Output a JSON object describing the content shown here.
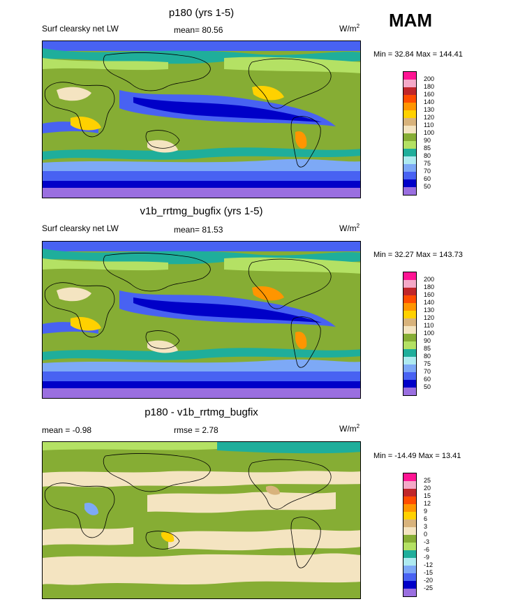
{
  "season": "MAM",
  "colors": {
    "panel1_scale": [
      "#ff1493",
      "#f4a9c8",
      "#c0262a",
      "#ff4d00",
      "#ff9500",
      "#ffd100",
      "#d8b37c",
      "#f4e4c1",
      "#86ad34",
      "#b4e164",
      "#1fae9b",
      "#aeeaf0",
      "#7da9f6",
      "#4862f2",
      "#0000c8",
      "#9a6fe0"
    ],
    "panel3_scale": [
      "#ff1493",
      "#f4a9c8",
      "#c0262a",
      "#ff4d00",
      "#ff9500",
      "#ffd100",
      "#d8b37c",
      "#f4e4c1",
      "#86ad34",
      "#b4e164",
      "#1fae9b",
      "#aeeaf0",
      "#7da9f6",
      "#4862f2",
      "#0000c8",
      "#9a6fe0"
    ]
  },
  "panels": [
    {
      "title": "p180 (yrs 1-5)",
      "left_label": "Surf clearsky net LW",
      "center_label": "mean=  80.56",
      "units": "W/m",
      "units_sup": "2",
      "minmax": "Min =  32.84 Max = 144.41"
    },
    {
      "title": "v1b_rrtmg_bugfix (yrs 1-5)",
      "left_label": "Surf clearsky net LW",
      "center_label": "mean=  81.53",
      "units": "W/m",
      "units_sup": "2",
      "minmax": "Min =  32.27 Max = 143.73"
    },
    {
      "title": "p180 - v1b_rrtmg_bugfix",
      "left_label": "mean =  -0.98",
      "center_label": "rmse =    2.78",
      "units": "W/m",
      "units_sup": "2",
      "minmax": "Min = -14.49 Max =  13.41"
    }
  ],
  "chart_data": [
    {
      "type": "heatmap",
      "title": "p180 (yrs 1-5)",
      "subtitle": "Surf clearsky net LW",
      "units": "W/m2",
      "mean": 80.56,
      "min": 32.84,
      "max": 144.41,
      "contour_levels": [
        50,
        60,
        70,
        75,
        80,
        85,
        90,
        100,
        110,
        120,
        130,
        140,
        160,
        180,
        200
      ]
    },
    {
      "type": "heatmap",
      "title": "v1b_rrtmg_bugfix (yrs 1-5)",
      "subtitle": "Surf clearsky net LW",
      "units": "W/m2",
      "mean": 81.53,
      "min": 32.27,
      "max": 143.73,
      "contour_levels": [
        50,
        60,
        70,
        75,
        80,
        85,
        90,
        100,
        110,
        120,
        130,
        140,
        160,
        180,
        200
      ]
    },
    {
      "type": "heatmap",
      "title": "p180 - v1b_rrtmg_bugfix",
      "units": "W/m2",
      "mean": -0.98,
      "rmse": 2.78,
      "min": -14.49,
      "max": 13.41,
      "contour_levels": [
        -25,
        -20,
        -15,
        -12,
        -9,
        -6,
        -3,
        0,
        3,
        6,
        9,
        12,
        15,
        20,
        25
      ]
    }
  ]
}
